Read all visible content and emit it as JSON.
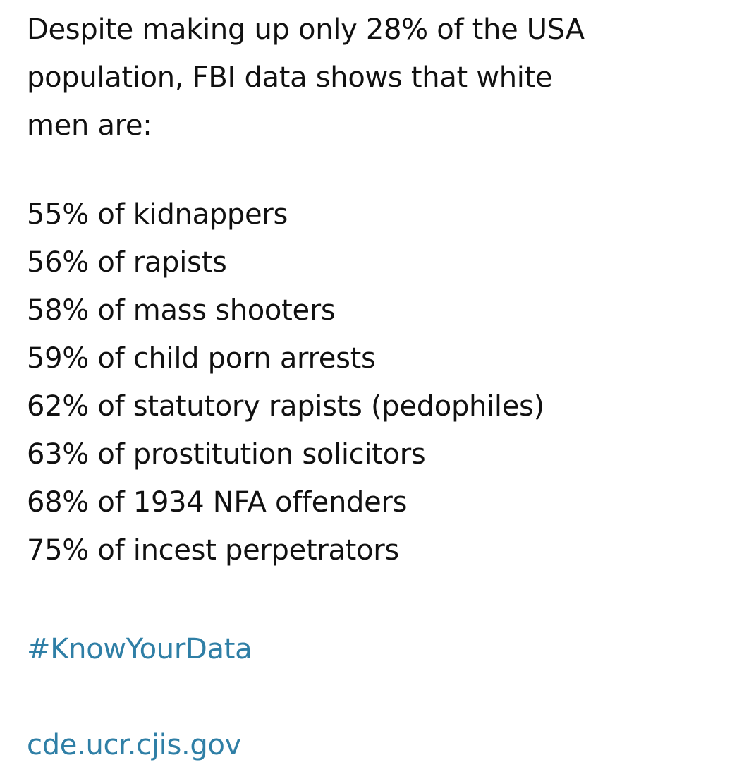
{
  "post": {
    "intro_lines": [
      "Despite making up only 28% of the USA",
      "population, FBI data shows that white",
      "men are:"
    ],
    "stats": [
      "55% of kidnappers",
      "56% of rapists",
      "58% of mass shooters",
      "59% of child porn arrests",
      "62% of statutory rapists (pedophiles)",
      "63% of prostitution solicitors",
      "68% of 1934 NFA offenders",
      "75% of incest perpetrators"
    ],
    "hashtag": "#KnowYourData",
    "link": "cde.ucr.cjis.gov"
  },
  "colors": {
    "text": "#111111",
    "link": "#2f7fa6",
    "background": "#ffffff"
  }
}
